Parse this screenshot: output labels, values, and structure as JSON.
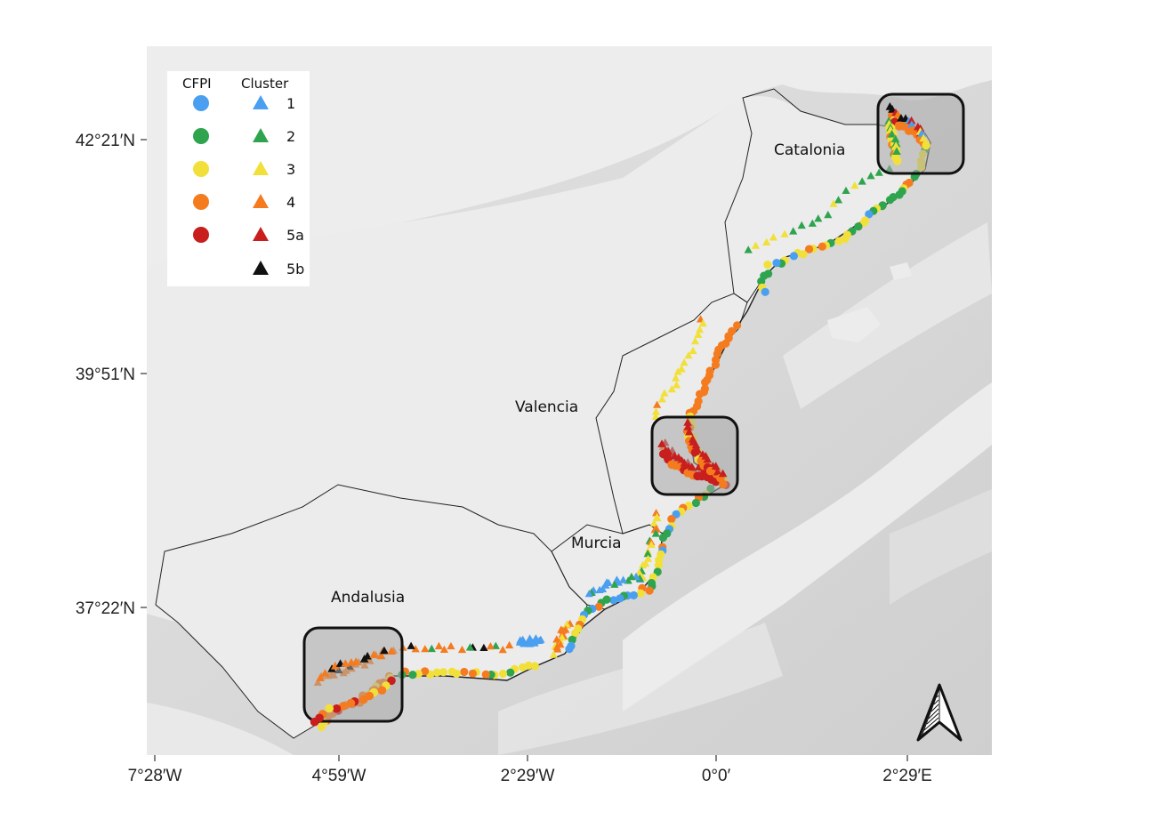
{
  "map": {
    "axes": {
      "y_ticks": [
        "42°21′N",
        "39°51′N",
        "37°22′N"
      ],
      "x_ticks": [
        "7°28′W",
        "4°59′W",
        "2°29′W",
        "0°0′",
        "2°29′E"
      ]
    },
    "regions": [
      "Catalonia",
      "Valencia",
      "Murcia",
      "Andalusia"
    ],
    "legend": {
      "cfpi_title": "CFPI",
      "cluster_title": "Cluster",
      "cfpi_colors": [
        "#4a9ff0",
        "#2ea44f",
        "#f2e03a",
        "#f57b1f",
        "#c81e1e"
      ],
      "clusters": [
        {
          "label": "1",
          "color": "#4a9ff0"
        },
        {
          "label": "2",
          "color": "#2ea44f"
        },
        {
          "label": "3",
          "color": "#f2e03a"
        },
        {
          "label": "4",
          "color": "#f57b1f"
        },
        {
          "label": "5a",
          "color": "#c81e1e"
        },
        {
          "label": "5b",
          "color": "#111111"
        }
      ]
    },
    "highlight_boxes": [
      "Catalonia hotspot",
      "Valencia hotspot",
      "Andalusia hotspot"
    ],
    "north_arrow": "north-arrow-icon",
    "colors": {
      "land": "#ececec",
      "sea": "#d9d9d9",
      "highlight_fill": "#a8a8a8",
      "border": "#222222"
    }
  }
}
